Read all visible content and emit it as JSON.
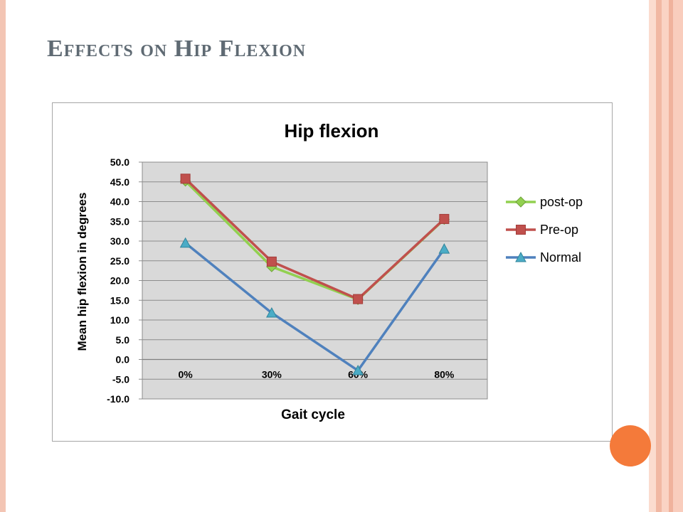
{
  "slide": {
    "title": "Effects on Hip Flexion"
  },
  "colors": {
    "accent_dot": "#f47a3a",
    "side_border": "#f3c5b4",
    "plot_background": "#d9d9d9"
  },
  "chart_data": {
    "type": "line",
    "title": "Hip flexion",
    "xlabel": "Gait cycle",
    "ylabel": "Mean hip flexion in degrees",
    "categories": [
      "0%",
      "30%",
      "60%",
      "80%"
    ],
    "ylim": [
      -10,
      50
    ],
    "ytick_step": 5,
    "y_tick_labels": [
      "-10.0",
      "-5.0",
      "0.0",
      "5.0",
      "10.0",
      "15.0",
      "20.0",
      "25.0",
      "30.0",
      "35.0",
      "40.0",
      "45.0",
      "50.0"
    ],
    "grid": true,
    "legend_position": "right",
    "series": [
      {
        "name": "post-op",
        "values": [
          45.2,
          23.5,
          15.2,
          35.5
        ],
        "color": "#92d050",
        "marker": "diamond"
      },
      {
        "name": "Pre-op",
        "values": [
          45.8,
          24.8,
          15.3,
          35.6
        ],
        "color": "#c0504d",
        "marker": "square"
      },
      {
        "name": "Normal",
        "values": [
          29.5,
          11.8,
          -2.8,
          28.0
        ],
        "color": "#4f81bd",
        "marker": "triangle"
      }
    ]
  }
}
